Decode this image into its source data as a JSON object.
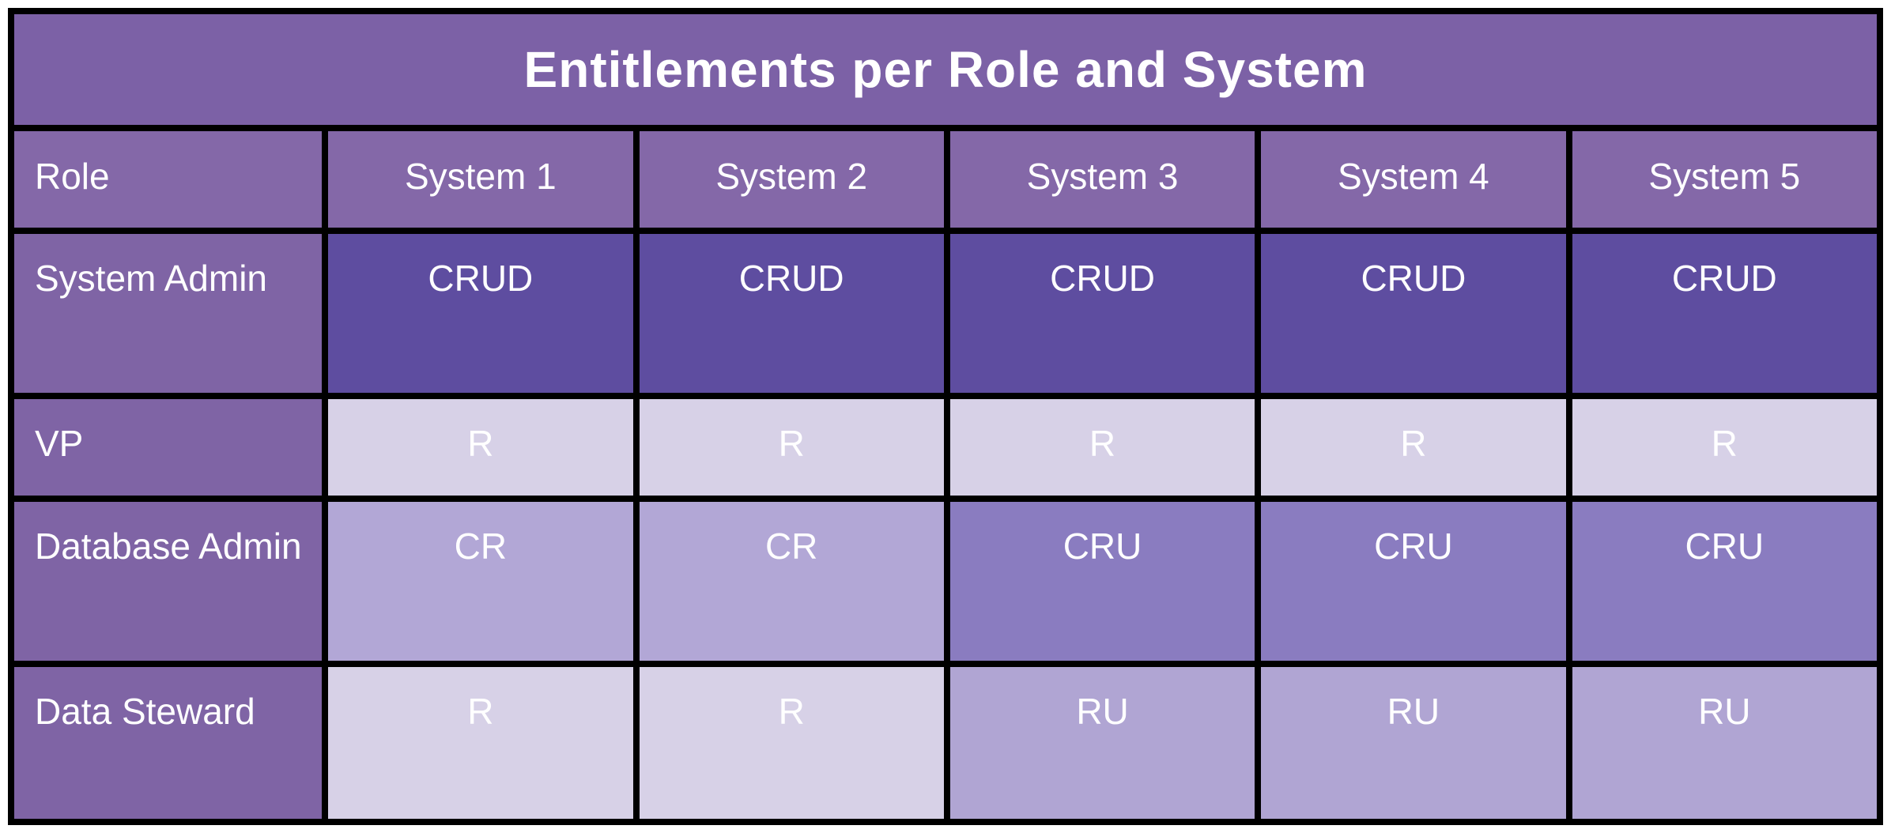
{
  "chart_data": {
    "type": "table",
    "title": "Entitlements per Role and System",
    "columns": [
      "Role",
      "System 1",
      "System 2",
      "System 3",
      "System 4",
      "System 5"
    ],
    "rows": [
      {
        "role": "System Admin",
        "values": [
          "CRUD",
          "CRUD",
          "CRUD",
          "CRUD",
          "CRUD"
        ]
      },
      {
        "role": "VP",
        "values": [
          "R",
          "R",
          "R",
          "R",
          "R"
        ]
      },
      {
        "role": "Database Admin",
        "values": [
          "CR",
          "CR",
          "CRU",
          "CRU",
          "CRU"
        ]
      },
      {
        "role": "Data Steward",
        "values": [
          "R",
          "R",
          "RU",
          "RU",
          "RU"
        ]
      }
    ]
  },
  "colors": {
    "page_bg": "#ffffff",
    "grid_border": "#000000",
    "title_bg": "#7c61a6",
    "header_bg": "#8468a8",
    "role_cell_bg": "#7f64a5",
    "text": "#ffffff",
    "entitlement_levels": {
      "CRUD": "#5e4da0",
      "CRU": "#8a7cc0",
      "CR": "#b2a7d6",
      "RU": "#b0a5d3",
      "R": "#d7d1e7"
    }
  }
}
